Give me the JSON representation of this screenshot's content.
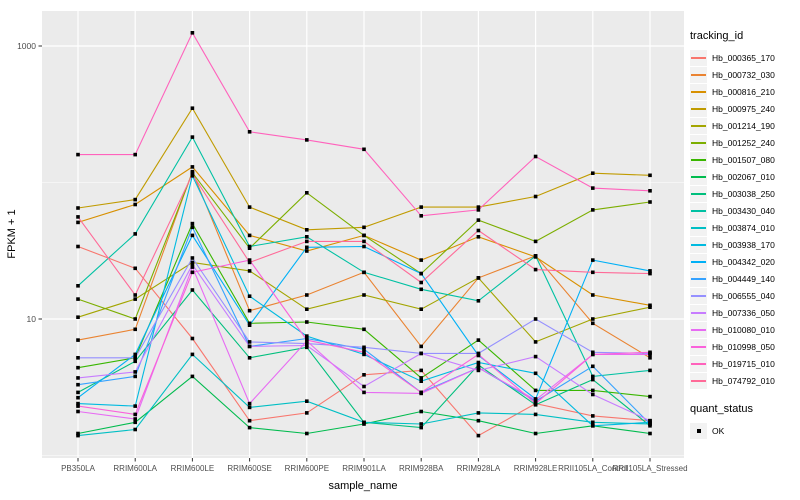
{
  "chart_data": {
    "type": "line",
    "title": "",
    "xlabel": "sample_name",
    "ylabel": "FPKM + 1",
    "y_scale": "log10",
    "ylim": [
      0.95,
      1900
    ],
    "grid": true,
    "panel_bg": "#ebebeb",
    "grid_color": "#ffffff",
    "tick_label_color": "#4d4d4d",
    "axis_title_color": "#000000",
    "marker_color": "#000000",
    "y_ticks": [
      {
        "label": "1000",
        "value": 1000
      },
      {
        "label": "10",
        "value": 10
      }
    ],
    "y_minor": [
      100,
      1
    ],
    "categories": [
      "PB350LA",
      "RRIM600LA",
      "RRIM600LE",
      "RRIM600SE",
      "RRIM600PE",
      "RRIM901LA",
      "RRIM928BA",
      "RRIM928LA",
      "RRIM928LE",
      "RRII105LA_Control",
      "RRII105LA_Stressed"
    ],
    "legend": {
      "title": "tracking_id",
      "position": "right"
    },
    "quant_legend": {
      "title": "quant_status",
      "items": [
        {
          "label": "OK",
          "shape": "square"
        }
      ]
    },
    "series": [
      {
        "name": "Hb_000365_170",
        "color": "#F8766D",
        "values": [
          34,
          23.5,
          7.2,
          1.8,
          2.05,
          3.9,
          4.2,
          1.4,
          2.4,
          1.95,
          1.8
        ]
      },
      {
        "name": "Hb_000732_030",
        "color": "#EA8331",
        "values": [
          7,
          8.4,
          120,
          11.5,
          15,
          22,
          6.3,
          20,
          29,
          9.3,
          5.2
        ]
      },
      {
        "name": "Hb_000816_210",
        "color": "#D89000",
        "values": [
          51,
          69,
          130,
          41,
          31.5,
          41,
          27,
          40,
          28.5,
          15,
          12.6
        ]
      },
      {
        "name": "Hb_000975_240",
        "color": "#C09B00",
        "values": [
          65,
          75,
          350,
          66,
          45,
          47,
          66,
          66,
          79,
          117,
          113
        ]
      },
      {
        "name": "Hb_001214_190",
        "color": "#A3A500",
        "values": [
          10.3,
          14,
          26,
          22.5,
          11.8,
          15,
          11.8,
          20,
          6.8,
          10,
          12.2
        ]
      },
      {
        "name": "Hb_001252_240",
        "color": "#7CAE00",
        "values": [
          14,
          10,
          118,
          33,
          84,
          41,
          21.5,
          53,
          37,
          63,
          72
        ]
      },
      {
        "name": "Hb_001507_080",
        "color": "#39B600",
        "values": [
          4.4,
          5.2,
          50,
          9.3,
          9.5,
          8.4,
          3.7,
          7,
          3.0,
          3.0,
          2.7
        ]
      },
      {
        "name": "Hb_002067_010",
        "color": "#00BB4E",
        "values": [
          1.45,
          1.75,
          3.8,
          1.6,
          1.45,
          1.7,
          2.1,
          1.8,
          1.45,
          1.65,
          1.45
        ]
      },
      {
        "name": "Hb_003038_250",
        "color": "#00BF7D",
        "values": [
          2.9,
          4.9,
          16.3,
          5.2,
          6.2,
          1.75,
          1.6,
          4.6,
          2.35,
          3.6,
          1.65
        ]
      },
      {
        "name": "Hb_003430_040",
        "color": "#00C1A3",
        "values": [
          17.5,
          42,
          215,
          34,
          40,
          22,
          16.5,
          13.6,
          29,
          3.8,
          4.2
        ]
      },
      {
        "name": "Hb_003874_010",
        "color": "#00BFC4",
        "values": [
          1.4,
          1.55,
          5.5,
          2.25,
          2.5,
          1.75,
          1.7,
          2.05,
          2.0,
          1.75,
          1.7
        ]
      },
      {
        "name": "Hb_003938_170",
        "color": "#00BAE0",
        "values": [
          2.4,
          2.3,
          112,
          14.7,
          7.5,
          5.5,
          3.5,
          4.8,
          4.0,
          1.65,
          1.75
        ]
      },
      {
        "name": "Hb_004342_020",
        "color": "#00B0F6",
        "values": [
          2.65,
          5.5,
          41,
          9.0,
          33.5,
          34,
          21.5,
          5.4,
          2.6,
          27,
          22.5
        ]
      },
      {
        "name": "Hb_004449_140",
        "color": "#35A2FF",
        "values": [
          3.3,
          3.8,
          47,
          6.3,
          7.2,
          6.0,
          2.9,
          4.4,
          2.5,
          4.5,
          1.7
        ]
      },
      {
        "name": "Hb_006555_040",
        "color": "#9590FF",
        "values": [
          5.2,
          5.2,
          28,
          6.8,
          6.6,
          6.2,
          5.6,
          5.6,
          10,
          5.7,
          5.6
        ]
      },
      {
        "name": "Hb_007336_050",
        "color": "#C77CFF",
        "values": [
          3.7,
          4.1,
          25,
          6.3,
          6.4,
          3.2,
          5.6,
          4.2,
          5.3,
          2.8,
          1.8
        ]
      },
      {
        "name": "Hb_010080_010",
        "color": "#E76BF3",
        "values": [
          2.1,
          1.85,
          24,
          2.4,
          6.9,
          2.9,
          2.85,
          4.4,
          2.55,
          5.5,
          5.5
        ]
      },
      {
        "name": "Hb_010998_050",
        "color": "#FA62DB",
        "values": [
          2.3,
          2.0,
          22,
          27,
          7.0,
          5.7,
          2.9,
          5.5,
          2.4,
          5.5,
          5.7
        ]
      },
      {
        "name": "Hb_019715_010",
        "color": "#FF62BC",
        "values": [
          160,
          160,
          1250,
          235,
          205,
          175,
          57,
          63,
          155,
          91,
          87
        ]
      },
      {
        "name": "Hb_074792_010",
        "color": "#FF6A98",
        "values": [
          56,
          15,
          115,
          26,
          37,
          37,
          18.5,
          44.5,
          23,
          22,
          21.5
        ]
      }
    ]
  }
}
